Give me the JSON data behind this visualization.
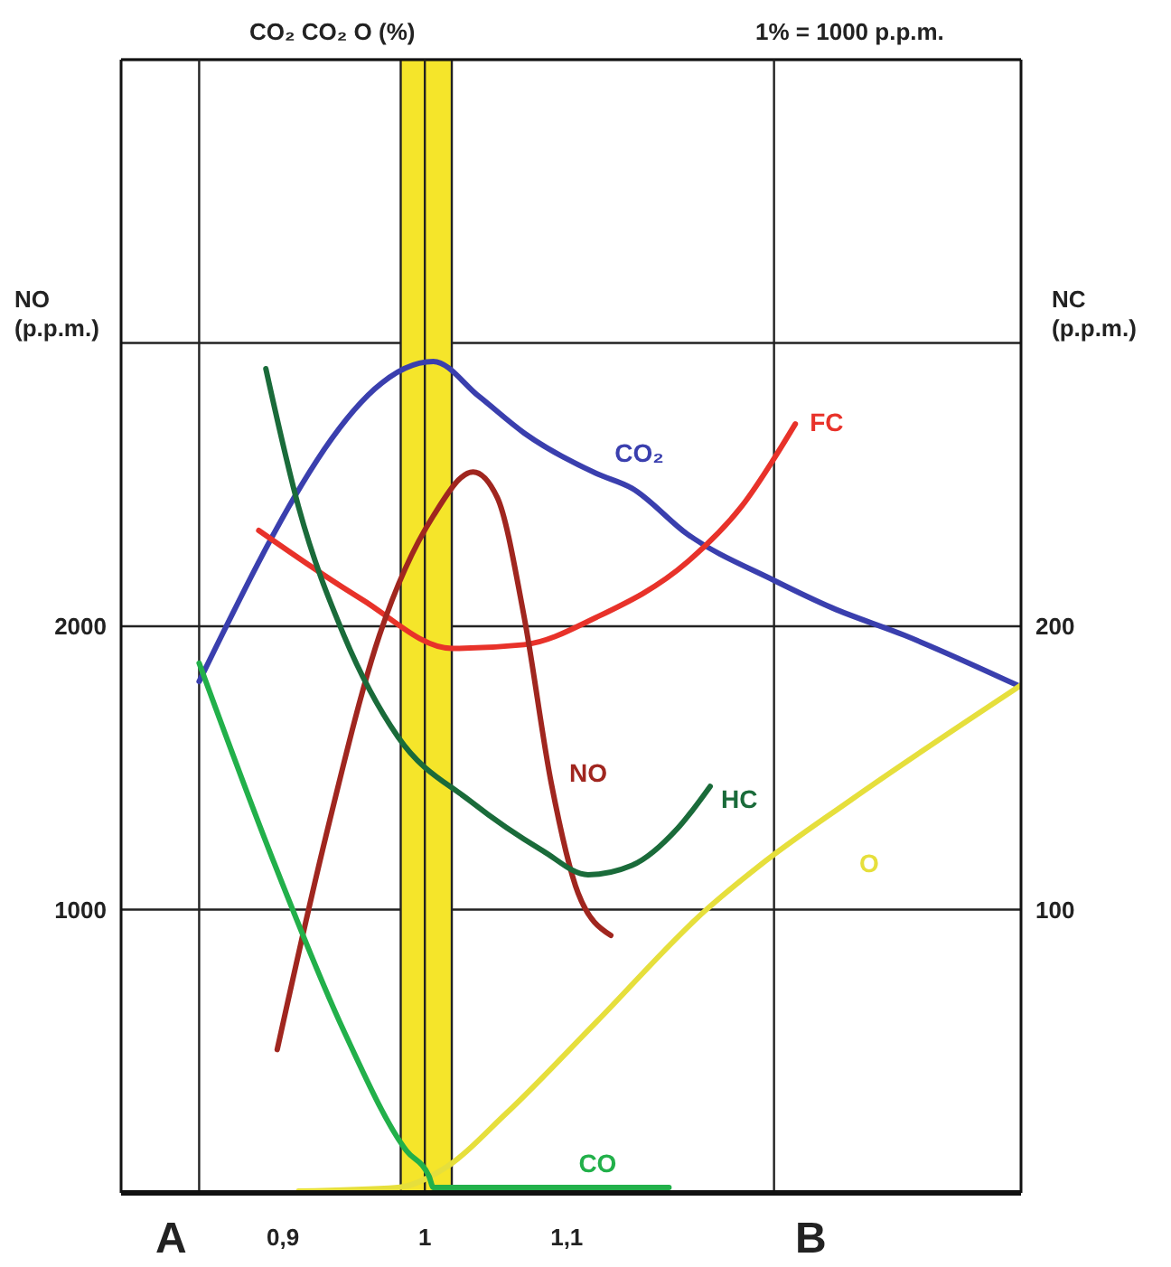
{
  "chart_data": {
    "type": "line",
    "title": "CO₂ CO₂ O (%)",
    "subtitle": "1% = 1000 p.p.m.",
    "ylabel": "NO (p.p.m.)",
    "y2label": "NC (p.p.m.)",
    "annotations": [
      "A",
      "B"
    ],
    "xlim": [
      0.786,
      1.42
    ],
    "xticks": [
      {
        "value": 0.9,
        "label": "0,9"
      },
      1,
      {
        "value": 1.1,
        "label": "1,1"
      }
    ],
    "ylim": [
      0,
      4000
    ],
    "yticks": [
      1000,
      2000,
      {
        "value": 3000,
        "label": null
      }
    ],
    "y2lim": [
      0,
      400
    ],
    "y2ticks": [
      100,
      200
    ],
    "grid": "y",
    "marker": "none",
    "line_style": "solid",
    "bands": [
      {
        "axis": "x",
        "from": 0.983,
        "to": 1.019,
        "color": "#f5e52a"
      }
    ],
    "ref_lines": [
      {
        "axis": "x",
        "value": 0.841
      },
      {
        "axis": "x",
        "value": 1.0
      },
      {
        "axis": "x",
        "value": 1.246
      }
    ],
    "series": [
      {
        "name": "CO₂",
        "color": "#3a3fae",
        "x": [
          0.841,
          1.006,
          1.038,
          1.07,
          1.121,
          1.146,
          1.185,
          1.246,
          1.287,
          1.338,
          1.42
        ],
        "values": [
          1805,
          2935,
          2812,
          2682,
          2539,
          2487,
          2325,
          2162,
          2065,
          1968,
          1786
        ]
      },
      {
        "name": "FC",
        "color": "#e8322a",
        "x": [
          0.883,
          0.955,
          1.019,
          1.07,
          1.121,
          1.185,
          1.223,
          1.261
        ],
        "values": [
          2338,
          2097,
          1922,
          1935,
          2032,
          2227,
          2422,
          2714
        ]
      },
      {
        "name": "NO",
        "color": "#a0261f",
        "x": [
          0.896,
          0.93,
          0.968,
          1.006,
          1.034,
          1.051,
          1.07,
          1.089,
          1.108,
          1.131
        ],
        "values": [
          506,
          1253,
          1968,
          2390,
          2545,
          2455,
          2032,
          1448,
          1058,
          909
        ]
      },
      {
        "name": "HC",
        "color": "#1a6b3a",
        "x": [
          0.888,
          0.911,
          0.943,
          0.981,
          1.032,
          1.083,
          1.115,
          1.146,
          1.178,
          1.201
        ],
        "values": [
          2909,
          2422,
          1968,
          1610,
          1383,
          1208,
          1123,
          1156,
          1286,
          1435
        ]
      },
      {
        "name": "O",
        "color": "#e6df3c",
        "x": [
          0.911,
          0.981,
          1.013,
          1.057,
          1.121,
          1.197,
          1.236,
          1.299,
          1.42
        ],
        "values": [
          6,
          19,
          84,
          279,
          604,
          994,
          1156,
          1383,
          1792
        ]
      },
      {
        "name": "CO",
        "color": "#22b04a",
        "x": [
          0.841,
          0.892,
          0.943,
          0.987,
          1.003,
          1.006,
          1.172
        ],
        "values": [
          1870,
          1188,
          571,
          149,
          58,
          19,
          19
        ]
      }
    ]
  }
}
